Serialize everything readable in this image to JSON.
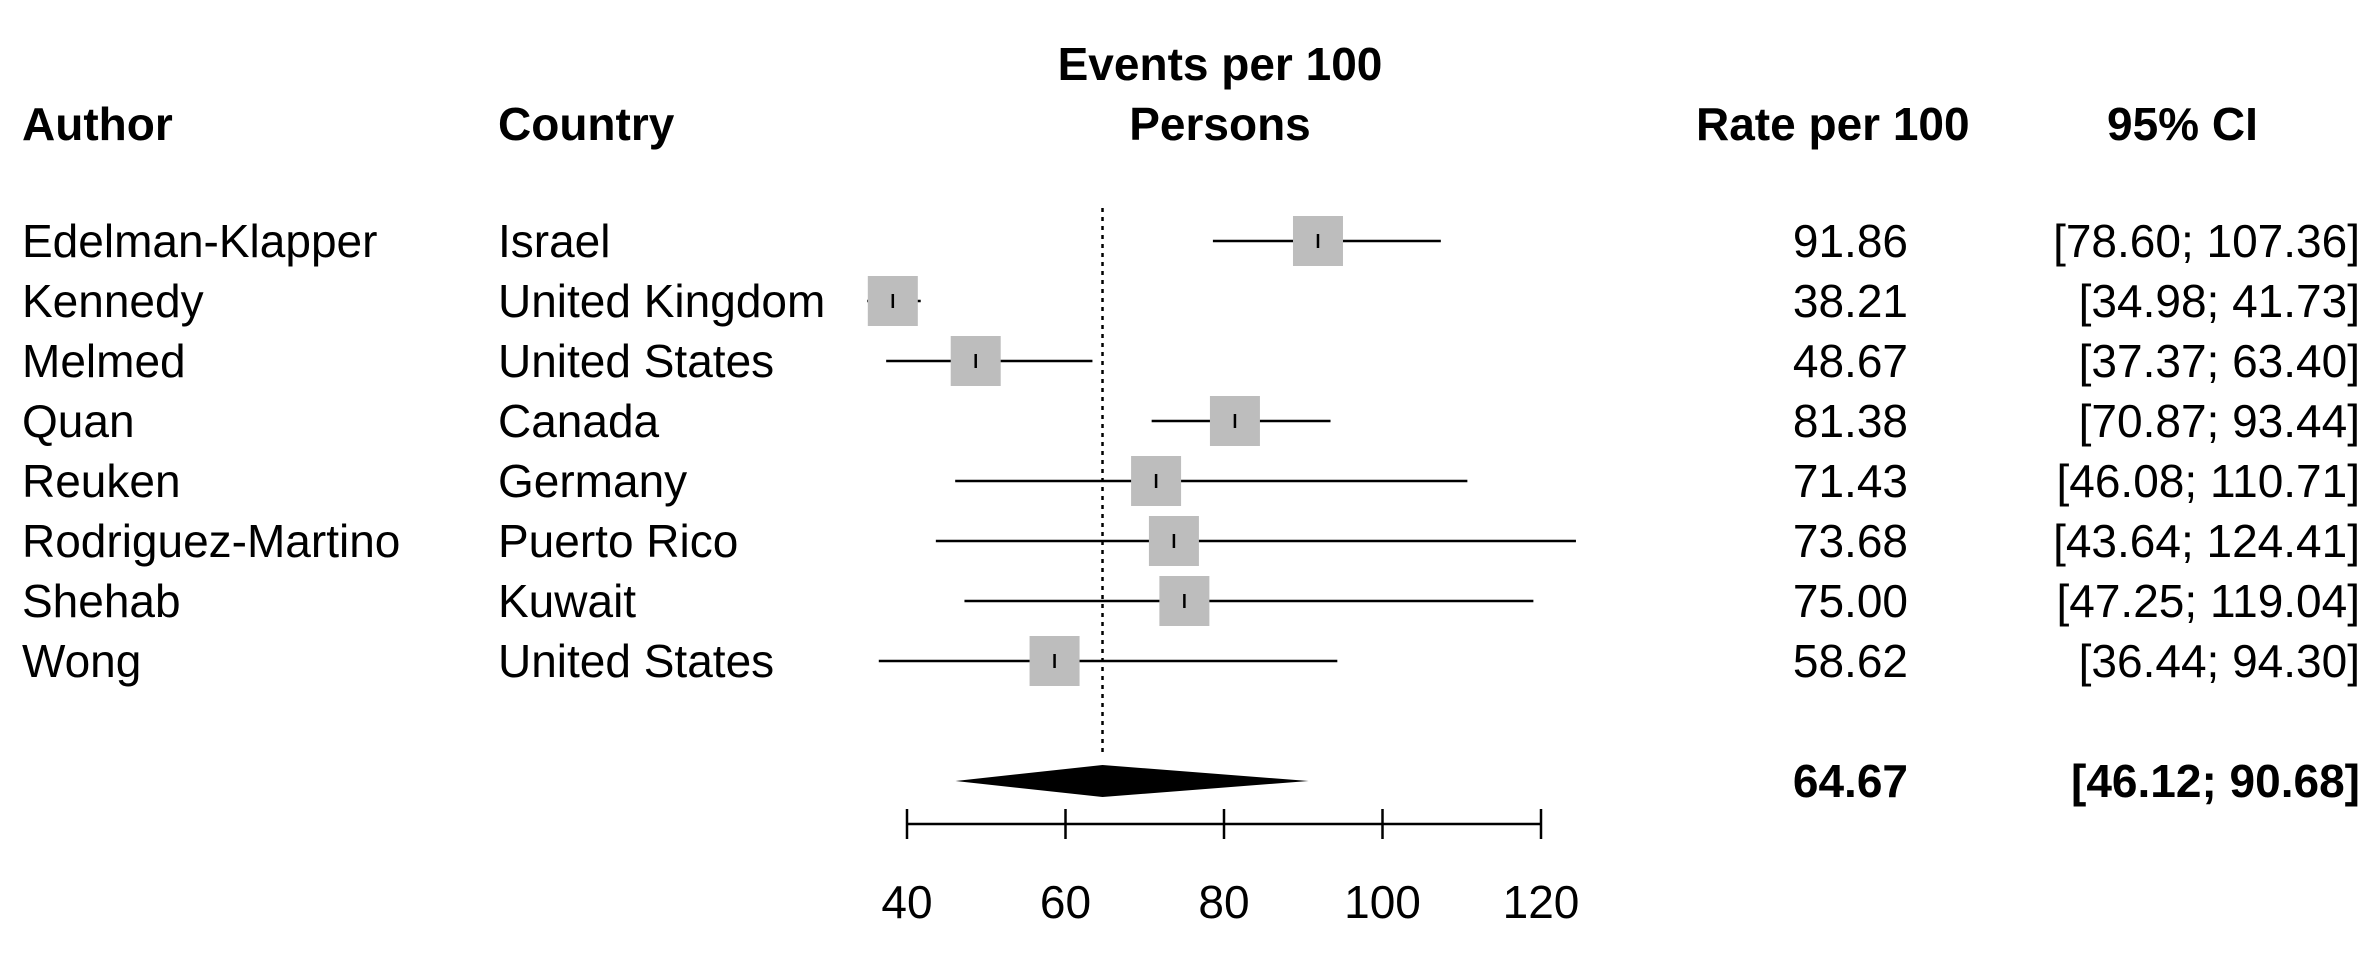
{
  "chart_data": {
    "type": "forest",
    "headers": {
      "author": "Author",
      "country": "Country",
      "plot_line1": "Events per 100",
      "plot_line2": "Persons",
      "rate": "Rate per 100",
      "ci": "95% CI"
    },
    "studies": [
      {
        "author": "Edelman-Klapper",
        "country": "Israel",
        "rate": 91.86,
        "lower": 78.6,
        "upper": 107.36,
        "rate_text": "91.86",
        "ci_text": "[78.60; 107.36]"
      },
      {
        "author": "Kennedy",
        "country": "United Kingdom",
        "rate": 38.21,
        "lower": 34.98,
        "upper": 41.73,
        "rate_text": "38.21",
        "ci_text": "[34.98;  41.73]"
      },
      {
        "author": "Melmed",
        "country": "United States",
        "rate": 48.67,
        "lower": 37.37,
        "upper": 63.4,
        "rate_text": "48.67",
        "ci_text": "[37.37;  63.40]"
      },
      {
        "author": "Quan",
        "country": "Canada",
        "rate": 81.38,
        "lower": 70.87,
        "upper": 93.44,
        "rate_text": "81.38",
        "ci_text": "[70.87;  93.44]"
      },
      {
        "author": "Reuken",
        "country": "Germany",
        "rate": 71.43,
        "lower": 46.08,
        "upper": 110.71,
        "rate_text": "71.43",
        "ci_text": "[46.08; 110.71]"
      },
      {
        "author": "Rodriguez-Martino",
        "country": "Puerto Rico",
        "rate": 73.68,
        "lower": 43.64,
        "upper": 124.41,
        "rate_text": "73.68",
        "ci_text": "[43.64; 124.41]"
      },
      {
        "author": "Shehab",
        "country": "Kuwait",
        "rate": 75.0,
        "lower": 47.25,
        "upper": 119.04,
        "rate_text": "75.00",
        "ci_text": "[47.25; 119.04]"
      },
      {
        "author": "Wong",
        "country": "United States",
        "rate": 58.62,
        "lower": 36.44,
        "upper": 94.3,
        "rate_text": "58.62",
        "ci_text": "[36.44;  94.30]"
      }
    ],
    "pooled": {
      "rate": 64.67,
      "lower": 46.12,
      "upper": 90.68,
      "rate_text": "64.67",
      "ci_text": "[46.12;  90.68]"
    },
    "x_axis": {
      "ticks": [
        40,
        60,
        80,
        100,
        120
      ],
      "range": [
        40,
        120
      ]
    },
    "reference_line": 64.67,
    "colors": {
      "box": "#bdbdbd",
      "line": "#000000"
    }
  }
}
